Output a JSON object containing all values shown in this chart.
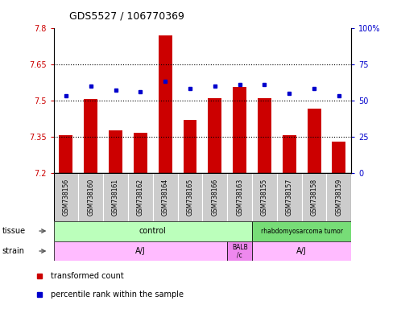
{
  "title": "GDS5527 / 106770369",
  "samples": [
    "GSM738156",
    "GSM738160",
    "GSM738161",
    "GSM738162",
    "GSM738164",
    "GSM738165",
    "GSM738166",
    "GSM738163",
    "GSM738155",
    "GSM738157",
    "GSM738158",
    "GSM738159"
  ],
  "transformed_count": [
    7.355,
    7.505,
    7.375,
    7.365,
    7.77,
    7.42,
    7.51,
    7.555,
    7.51,
    7.355,
    7.465,
    7.33
  ],
  "percentile_rank": [
    53,
    60,
    57,
    56,
    63,
    58,
    60,
    61,
    61,
    55,
    58,
    53
  ],
  "ylim_left": [
    7.2,
    7.8
  ],
  "ylim_right": [
    0,
    100
  ],
  "yticks_left": [
    7.2,
    7.35,
    7.5,
    7.65,
    7.8
  ],
  "ytick_labels_left": [
    "7.2",
    "7.35",
    "7.5",
    "7.65",
    "7.8"
  ],
  "yticks_right": [
    0,
    25,
    50,
    75,
    100
  ],
  "ytick_labels_right": [
    "0",
    "25",
    "50",
    "75",
    "100%"
  ],
  "hlines": [
    7.35,
    7.5,
    7.65
  ],
  "bar_color": "#cc0000",
  "dot_color": "#0000cc",
  "bar_bottom": 7.2,
  "tissue_label": "tissue",
  "strain_label": "strain",
  "control_color": "#bbffbb",
  "tumor_color": "#77dd77",
  "strain_aj_color": "#ffbbff",
  "strain_balb_color": "#ee88ee",
  "sample_box_color": "#cccccc",
  "legend_items": [
    {
      "label": "transformed count",
      "color": "#cc0000"
    },
    {
      "label": "percentile rank within the sample",
      "color": "#0000cc"
    }
  ]
}
